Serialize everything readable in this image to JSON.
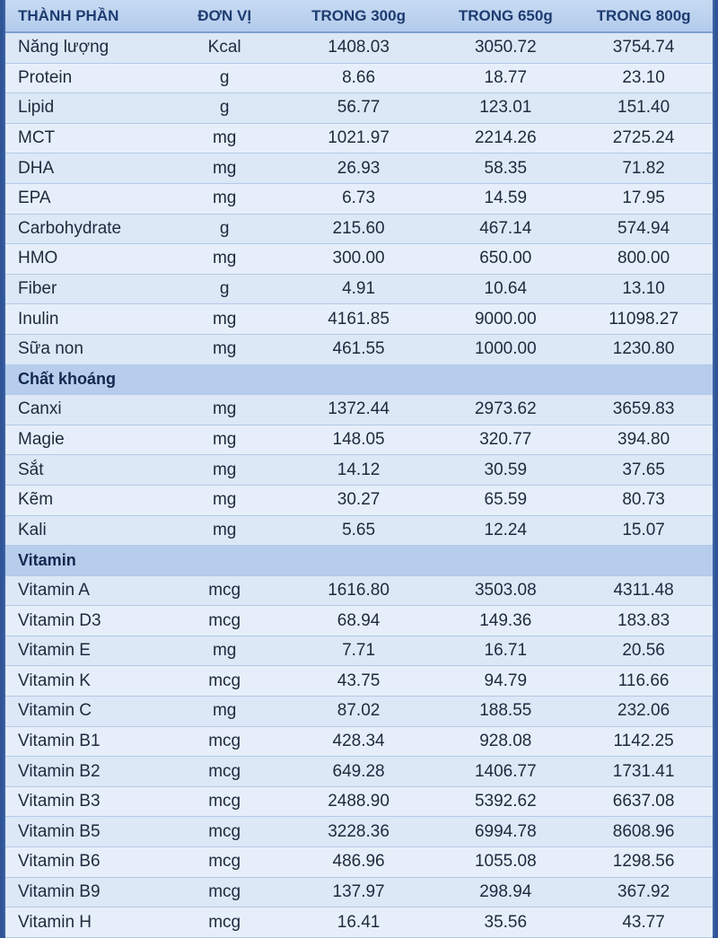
{
  "table": {
    "columns": [
      "THÀNH PHẦN",
      "ĐƠN VỊ",
      "TRONG 300g",
      "TRONG 650g",
      "TRONG 800g"
    ],
    "rows": [
      [
        "Năng lượng",
        "Kcal",
        "1408.03",
        "3050.72",
        "3754.74"
      ],
      [
        "Protein",
        "g",
        "8.66",
        "18.77",
        "23.10"
      ],
      [
        "Lipid",
        "g",
        "56.77",
        "123.01",
        "151.40"
      ],
      [
        "MCT",
        "mg",
        "1021.97",
        "2214.26",
        "2725.24"
      ],
      [
        "DHA",
        "mg",
        "26.93",
        "58.35",
        "71.82"
      ],
      [
        "EPA",
        "mg",
        "6.73",
        "14.59",
        "17.95"
      ],
      [
        "Carbohydrate",
        "g",
        "215.60",
        "467.14",
        "574.94"
      ],
      [
        "HMO",
        "mg",
        "300.00",
        "650.00",
        "800.00"
      ],
      [
        "Fiber",
        "g",
        "4.91",
        "10.64",
        "13.10"
      ],
      [
        "Inulin",
        "mg",
        "4161.85",
        "9000.00",
        "11098.27"
      ],
      [
        "Sữa non",
        "mg",
        "461.55",
        "1000.00",
        "1230.80"
      ]
    ],
    "sections": [
      {
        "title": "Chất khoáng",
        "rows": [
          [
            "Canxi",
            "mg",
            "1372.44",
            "2973.62",
            "3659.83"
          ],
          [
            "Magie",
            "mg",
            "148.05",
            "320.77",
            "394.80"
          ],
          [
            "Sắt",
            "mg",
            "14.12",
            "30.59",
            "37.65"
          ],
          [
            "Kẽm",
            "mg",
            "30.27",
            "65.59",
            "80.73"
          ],
          [
            "Kali",
            "mg",
            "5.65",
            "12.24",
            "15.07"
          ]
        ]
      },
      {
        "title": "Vitamin",
        "rows": [
          [
            "Vitamin A",
            "mcg",
            "1616.80",
            "3503.08",
            "4311.48"
          ],
          [
            "Vitamin D3",
            "mcg",
            "68.94",
            "149.36",
            "183.83"
          ],
          [
            "Vitamin E",
            "mg",
            "7.71",
            "16.71",
            "20.56"
          ],
          [
            "Vitamin K",
            "mcg",
            "43.75",
            "94.79",
            "116.66"
          ],
          [
            "Vitamin C",
            "mg",
            "87.02",
            "188.55",
            "232.06"
          ],
          [
            "Vitamin B1",
            "mcg",
            "428.34",
            "928.08",
            "1142.25"
          ],
          [
            "Vitamin B2",
            "mcg",
            "649.28",
            "1406.77",
            "1731.41"
          ],
          [
            "Vitamin B3",
            "mcg",
            "2488.90",
            "5392.62",
            "6637.08"
          ],
          [
            "Vitamin B5",
            "mcg",
            "3228.36",
            "6994.78",
            "8608.96"
          ],
          [
            "Vitamin B6",
            "mcg",
            "486.96",
            "1055.08",
            "1298.56"
          ],
          [
            "Vitamin B9",
            "mcg",
            "137.97",
            "298.94",
            "367.92"
          ],
          [
            "Vitamin H",
            "mcg",
            "16.41",
            "35.56",
            "43.77"
          ]
        ]
      }
    ]
  }
}
